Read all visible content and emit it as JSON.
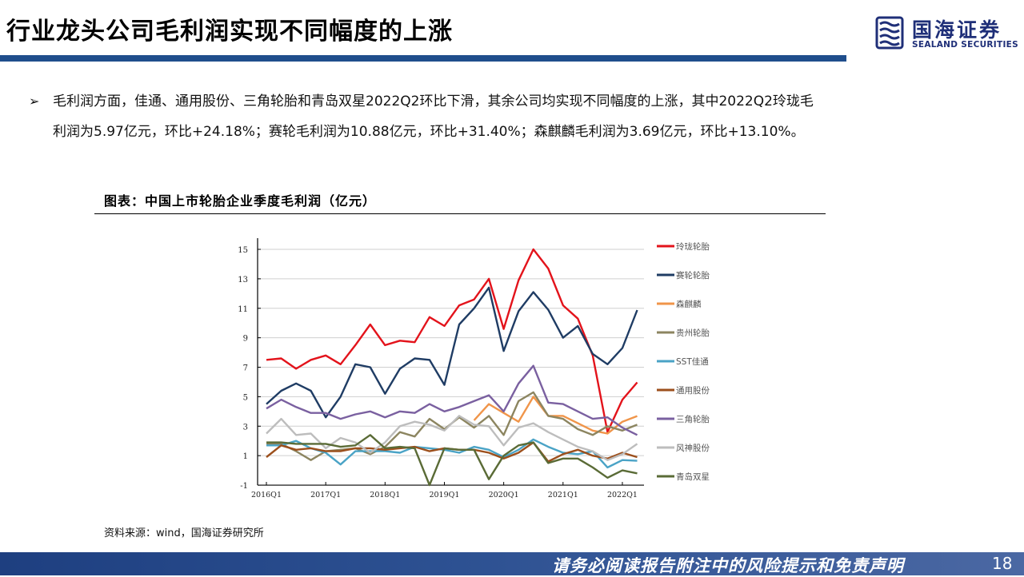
{
  "header": {
    "title": "行业龙头公司毛利润实现不同幅度的上涨",
    "logo_cn": "国海证券",
    "logo_en": "SEALAND SECURITIES",
    "accent_color": "#1f4e8c"
  },
  "bullet": {
    "arrow": "➢",
    "line1": "毛利润方面，佳通、通用股份、三角轮胎和青岛双星2022Q2环比下滑，其余公司均实现不同幅度的上涨，其中2022Q2玲珑毛",
    "line2": "利润为5.97亿元，环比+24.18%；赛轮毛利润为10.88亿元，环比+31.40%；森麒麟毛利润为3.69亿元，环比+13.10%。"
  },
  "chart_title": "图表：中国上市轮胎企业季度毛利润（亿元）",
  "source": "资料来源：wind，国海证券研究所",
  "footer": {
    "disclaimer": "请务必阅读报告附注中的风险提示和免责声明",
    "page_number": "18"
  },
  "chart_data": {
    "type": "line",
    "title": "中国上市轮胎企业季度毛利润（亿元）",
    "xlabel": "",
    "ylabel": "亿元",
    "ylim": [
      -1,
      16
    ],
    "yticks": [
      -1,
      1,
      3,
      5,
      7,
      9,
      11,
      13,
      15
    ],
    "grid": true,
    "legend_position": "right",
    "x": [
      "2016Q1",
      "2016Q2",
      "2016Q3",
      "2016Q4",
      "2017Q1",
      "2017Q2",
      "2017Q3",
      "2017Q4",
      "2018Q1",
      "2018Q2",
      "2018Q3",
      "2018Q4",
      "2019Q1",
      "2019Q2",
      "2019Q3",
      "2019Q4",
      "2020Q1",
      "2020Q2",
      "2020Q3",
      "2020Q4",
      "2021Q1",
      "2021Q2",
      "2021Q3",
      "2021Q4",
      "2022Q1",
      "2022Q2"
    ],
    "xtick_labels": [
      "2016Q1",
      "2017Q1",
      "2018Q1",
      "2019Q1",
      "2020Q1",
      "2021Q1",
      "2022Q1"
    ],
    "series": [
      {
        "name": "玲珑轮胎",
        "color": "#e3131b",
        "values": [
          7.5,
          7.6,
          6.9,
          7.5,
          7.8,
          7.2,
          8.5,
          9.9,
          8.5,
          8.8,
          8.7,
          10.4,
          9.8,
          11.2,
          11.6,
          13.0,
          9.6,
          12.9,
          15.0,
          13.7,
          11.2,
          10.3,
          7.8,
          2.6,
          4.8,
          5.97
        ]
      },
      {
        "name": "赛轮轮胎",
        "color": "#1f3c64",
        "values": [
          4.5,
          5.4,
          5.9,
          5.4,
          3.6,
          5.0,
          7.2,
          7.0,
          5.2,
          6.9,
          7.6,
          7.5,
          5.8,
          9.9,
          11.0,
          12.4,
          8.1,
          10.8,
          12.1,
          10.9,
          9.0,
          9.8,
          7.9,
          7.2,
          8.3,
          10.88
        ]
      },
      {
        "name": "森麒麟",
        "color": "#f0954a",
        "values": [
          null,
          null,
          null,
          null,
          null,
          null,
          null,
          null,
          null,
          null,
          null,
          null,
          null,
          null,
          3.4,
          4.5,
          3.9,
          3.3,
          5.0,
          3.7,
          3.7,
          3.2,
          2.7,
          2.5,
          3.3,
          3.69
        ]
      },
      {
        "name": "贵州轮胎",
        "color": "#8c8560",
        "values": [
          1.8,
          1.8,
          1.3,
          0.7,
          1.3,
          1.4,
          1.5,
          1.1,
          1.6,
          2.6,
          2.3,
          3.5,
          2.8,
          3.6,
          2.9,
          3.7,
          2.4,
          4.7,
          5.3,
          3.7,
          3.5,
          2.8,
          2.4,
          3.0,
          2.7,
          3.1
        ]
      },
      {
        "name": "SST佳通",
        "color": "#4aa3c6",
        "values": [
          1.7,
          1.7,
          2.0,
          1.5,
          1.2,
          0.4,
          1.3,
          1.3,
          1.3,
          1.2,
          1.6,
          1.5,
          1.4,
          1.2,
          1.6,
          1.4,
          0.9,
          1.4,
          2.1,
          1.6,
          1.2,
          1.1,
          1.3,
          0.2,
          0.7,
          0.65
        ]
      },
      {
        "name": "通用股份",
        "color": "#9c4f1c",
        "values": [
          0.9,
          1.7,
          1.4,
          1.5,
          1.3,
          1.3,
          1.5,
          1.5,
          1.4,
          1.5,
          1.6,
          1.3,
          1.5,
          1.4,
          1.4,
          1.2,
          0.8,
          1.2,
          1.9,
          0.6,
          1.1,
          1.4,
          1.0,
          0.8,
          1.2,
          0.9
        ]
      },
      {
        "name": "三角轮胎",
        "color": "#7a60a0",
        "values": [
          4.2,
          4.8,
          4.3,
          3.9,
          3.9,
          3.5,
          3.8,
          4.0,
          3.6,
          4.0,
          3.9,
          4.5,
          4.0,
          4.3,
          4.7,
          5.1,
          4.0,
          5.9,
          7.1,
          4.6,
          4.5,
          4.0,
          3.5,
          3.6,
          2.9,
          2.4
        ]
      },
      {
        "name": "风神股份",
        "color": "#bdbdbd",
        "values": [
          2.5,
          3.5,
          2.4,
          2.5,
          1.5,
          2.2,
          1.9,
          1.2,
          1.9,
          3.0,
          3.3,
          3.1,
          2.7,
          3.7,
          3.1,
          3.0,
          1.7,
          2.9,
          3.2,
          2.6,
          2.1,
          1.6,
          1.3,
          0.7,
          1.1,
          1.8
        ]
      },
      {
        "name": "青岛双星",
        "color": "#5a6b36",
        "values": [
          1.9,
          1.9,
          1.8,
          1.8,
          1.8,
          1.6,
          1.7,
          2.4,
          1.5,
          1.6,
          1.5,
          -1.0,
          1.5,
          1.4,
          1.4,
          -0.6,
          1.0,
          1.7,
          1.9,
          0.5,
          0.8,
          0.8,
          0.2,
          -0.5,
          0.0,
          -0.2
        ]
      }
    ]
  }
}
